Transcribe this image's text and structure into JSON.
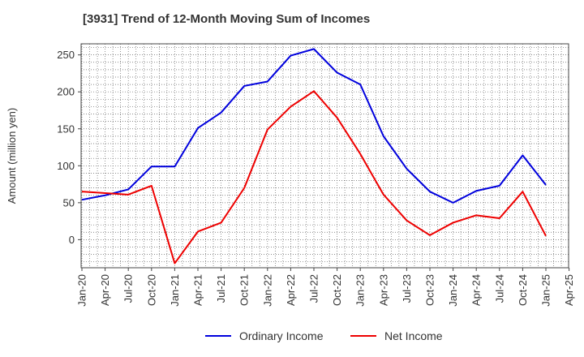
{
  "chart_data": {
    "type": "line",
    "title": "[3931]  Trend of 12-Month Moving Sum of Incomes",
    "xlabel": "",
    "ylabel": "Amount (million yen)",
    "ylim": [
      -38,
      265
    ],
    "yticks": [
      0,
      50,
      100,
      150,
      200,
      250
    ],
    "grid": true,
    "legend_position": "bottom",
    "x": [
      "Jan-20",
      "Apr-20",
      "Jul-20",
      "Oct-20",
      "Jan-21",
      "Apr-21",
      "Jul-21",
      "Oct-21",
      "Jan-22",
      "Apr-22",
      "Jul-22",
      "Oct-22",
      "Jan-23",
      "Apr-23",
      "Jul-23",
      "Oct-23",
      "Jan-24",
      "Apr-24",
      "Jul-24",
      "Oct-24",
      "Jan-25",
      "Apr-25"
    ],
    "series": [
      {
        "name": "Ordinary Income",
        "color": "#0000dd",
        "values": [
          54,
          60,
          68,
          99,
          99,
          151,
          172,
          208,
          214,
          249,
          258,
          226,
          210,
          140,
          96,
          65,
          50,
          66,
          73,
          114,
          74,
          null
        ]
      },
      {
        "name": "Net Income",
        "color": "#ee0000",
        "values": [
          65,
          63,
          61,
          73,
          -32,
          11,
          23,
          70,
          149,
          180,
          201,
          165,
          116,
          61,
          26,
          6,
          23,
          33,
          29,
          65,
          5,
          null
        ]
      }
    ]
  }
}
